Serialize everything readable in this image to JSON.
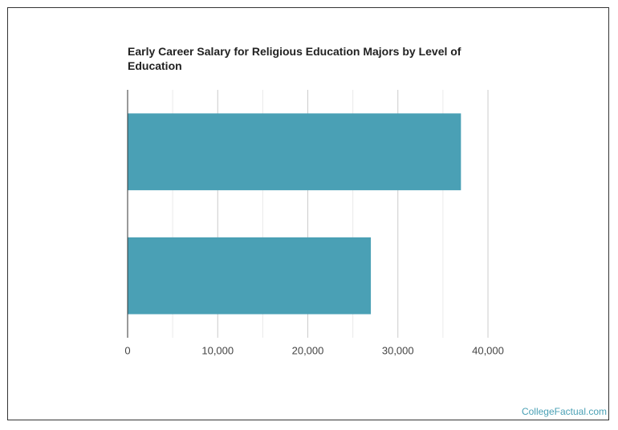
{
  "chart_data": {
    "type": "bar",
    "orientation": "horizontal",
    "title": "Early Career Salary for Religious Education Majors by Level of Education",
    "categories": [
      null,
      null
    ],
    "values": [
      37000,
      27000
    ],
    "color": "#4aa0b5",
    "xlim": [
      0,
      40000
    ],
    "xticks": [
      0,
      {
        "value": 10000,
        "label": "10,000"
      },
      {
        "value": 20000,
        "label": "20,000"
      },
      {
        "value": 30000,
        "label": "30,000"
      },
      {
        "value": 40000,
        "label": "40,000"
      }
    ],
    "minor_xticks": [
      5000,
      15000,
      25000,
      35000
    ],
    "grid": true,
    "source": "CollegeFactual.com"
  }
}
